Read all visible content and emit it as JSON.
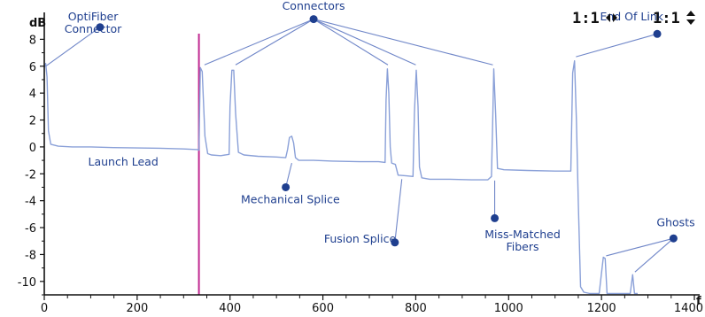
{
  "chart_data": {
    "type": "line",
    "title": "",
    "xlabel": "f",
    "ylabel": "dB",
    "xlim": [
      0,
      1400
    ],
    "ylim": [
      -11,
      10
    ],
    "grid": false,
    "x_ticks": [
      0,
      200,
      400,
      600,
      800,
      1000,
      1200,
      1400
    ],
    "y_ticks": [
      -10,
      -8,
      -6,
      -4,
      -2,
      0,
      2,
      4,
      6,
      8
    ],
    "series": [
      {
        "color": "#8aa0d8",
        "points": [
          [
            0,
            5.9
          ],
          [
            3,
            6.2
          ],
          [
            6,
            5.2
          ],
          [
            9,
            1.2
          ],
          [
            14,
            0.2
          ],
          [
            30,
            0.05
          ],
          [
            60,
            0.0
          ],
          [
            100,
            0.0
          ],
          [
            150,
            -0.05
          ],
          [
            200,
            -0.08
          ],
          [
            250,
            -0.1
          ],
          [
            300,
            -0.15
          ],
          [
            330,
            -0.2
          ],
          [
            333,
            -0.25
          ],
          [
            336,
            5.9
          ],
          [
            340,
            5.6
          ],
          [
            346,
            0.8
          ],
          [
            352,
            -0.5
          ],
          [
            360,
            -0.6
          ],
          [
            380,
            -0.65
          ],
          [
            398,
            -0.55
          ],
          [
            400,
            3.0
          ],
          [
            404,
            5.7
          ],
          [
            408,
            5.7
          ],
          [
            412,
            2.5
          ],
          [
            418,
            -0.4
          ],
          [
            430,
            -0.6
          ],
          [
            460,
            -0.7
          ],
          [
            500,
            -0.75
          ],
          [
            520,
            -0.8
          ],
          [
            524,
            -0.2
          ],
          [
            528,
            0.7
          ],
          [
            533,
            0.8
          ],
          [
            537,
            0.3
          ],
          [
            541,
            -0.8
          ],
          [
            548,
            -1.0
          ],
          [
            580,
            -1.0
          ],
          [
            620,
            -1.05
          ],
          [
            680,
            -1.1
          ],
          [
            720,
            -1.1
          ],
          [
            734,
            -1.15
          ],
          [
            736,
            3.5
          ],
          [
            739,
            5.8
          ],
          [
            742,
            4.0
          ],
          [
            745,
            0.0
          ],
          [
            748,
            -1.2
          ],
          [
            756,
            -1.3
          ],
          [
            762,
            -2.1
          ],
          [
            780,
            -2.15
          ],
          [
            794,
            -2.2
          ],
          [
            797,
            2.5
          ],
          [
            801,
            5.7
          ],
          [
            805,
            3.0
          ],
          [
            808,
            -1.5
          ],
          [
            813,
            -2.3
          ],
          [
            830,
            -2.4
          ],
          [
            870,
            -2.4
          ],
          [
            920,
            -2.45
          ],
          [
            955,
            -2.45
          ],
          [
            963,
            -2.2
          ],
          [
            966,
            2.5
          ],
          [
            968,
            5.8
          ],
          [
            972,
            2.5
          ],
          [
            976,
            -1.6
          ],
          [
            990,
            -1.7
          ],
          [
            1040,
            -1.75
          ],
          [
            1100,
            -1.8
          ],
          [
            1134,
            -1.8
          ],
          [
            1138,
            5.5
          ],
          [
            1142,
            6.4
          ],
          [
            1146,
            2.0
          ],
          [
            1150,
            -4.0
          ],
          [
            1155,
            -10.4
          ],
          [
            1162,
            -10.8
          ],
          [
            1175,
            -10.9
          ],
          [
            1195,
            -10.9
          ],
          [
            1204,
            -8.2
          ],
          [
            1208,
            -8.3
          ],
          [
            1212,
            -10.9
          ],
          [
            1262,
            -10.9
          ],
          [
            1267,
            -9.5
          ],
          [
            1271,
            -10.9
          ],
          [
            1278,
            -10.9
          ]
        ]
      }
    ],
    "marker_line": {
      "x": 333,
      "color": "#c02890"
    },
    "annotations": [
      {
        "text": "OptiFiber",
        "text2": "Connector",
        "text_x": 105,
        "text_y": 9.4,
        "anchor": "middle",
        "dot": [
          120,
          8.9
        ],
        "targets": [
          [
            3,
            6.0
          ]
        ]
      },
      {
        "text": "Connectors",
        "text2": "",
        "text_x": 580,
        "text_y": 10.2,
        "anchor": "middle",
        "dot": [
          580,
          9.5
        ],
        "targets": [
          [
            345,
            6.1
          ],
          [
            412,
            6.1
          ],
          [
            740,
            6.1
          ],
          [
            800,
            6.1
          ],
          [
            966,
            6.1
          ]
        ]
      },
      {
        "text": "End Of Link",
        "text2": "",
        "text_x": 1265,
        "text_y": 9.4,
        "anchor": "middle",
        "dot": [
          1320,
          8.4
        ],
        "targets": [
          [
            1145,
            6.7
          ]
        ]
      },
      {
        "text": "Launch Lead",
        "text2": "",
        "text_x": 170,
        "text_y": -1.4,
        "anchor": "middle",
        "dot": null,
        "targets": []
      },
      {
        "text": "Mechanical Splice",
        "text2": "",
        "text_x": 530,
        "text_y": -4.2,
        "anchor": "middle",
        "dot": [
          520,
          -3.0
        ],
        "targets": [
          [
            533,
            -1.2
          ]
        ]
      },
      {
        "text": "Fusion Splice",
        "text2": "",
        "text_x": 680,
        "text_y": -7.1,
        "anchor": "middle",
        "dot": [
          755,
          -7.1
        ],
        "targets": [
          [
            770,
            -2.4
          ]
        ]
      },
      {
        "text": "Miss-Matched",
        "text2": "Fibers",
        "text_x": 1030,
        "text_y": -6.8,
        "anchor": "middle",
        "dot": [
          970,
          -5.3
        ],
        "targets": [
          [
            970,
            -2.5
          ]
        ]
      },
      {
        "text": "Ghosts",
        "text2": "",
        "text_x": 1360,
        "text_y": -5.9,
        "anchor": "middle",
        "dot": [
          1355,
          -6.8
        ],
        "targets": [
          [
            1210,
            -8.1
          ],
          [
            1272,
            -9.3
          ]
        ]
      }
    ],
    "zoom_controls": [
      {
        "text": "1:1",
        "icon": "left-right-arrows-icon"
      },
      {
        "text": "1:1",
        "icon": "up-down-arrows-icon"
      }
    ]
  }
}
